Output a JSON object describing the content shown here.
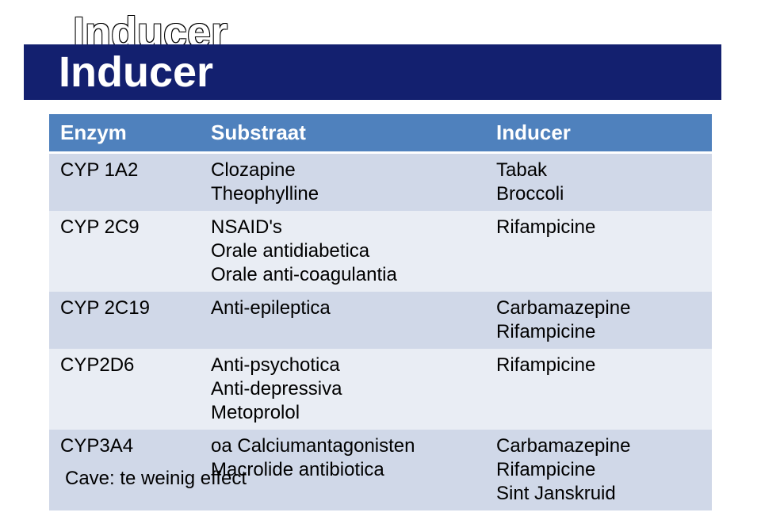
{
  "title": "Inducer",
  "table": {
    "header_bg": "#4f81bd",
    "header_fg": "#ffffff",
    "band_a_bg": "#d0d8e8",
    "band_b_bg": "#e9edf4",
    "columns": [
      "Enzym",
      "Substraat",
      "Inducer"
    ],
    "rows": [
      {
        "enzym": "CYP 1A2",
        "substraat": "Clozapine\nTheophylline",
        "inducer": "Tabak\nBroccoli"
      },
      {
        "enzym": "CYP 2C9",
        "substraat": "NSAID's\nOrale antidiabetica\nOrale anti-coagulantia",
        "inducer": "Rifampicine"
      },
      {
        "enzym": "CYP 2C19",
        "substraat": "Anti-epileptica",
        "inducer": "Carbamazepine\nRifampicine"
      },
      {
        "enzym": "CYP2D6",
        "substraat": "Anti-psychotica\nAnti-depressiva\nMetoprolol",
        "inducer": "Rifampicine"
      },
      {
        "enzym": "CYP3A4",
        "substraat": "oa Calciumantagonisten\nMacrolide antibiotica",
        "inducer": "Carbamazepine\nRifampicine\nSint Janskruid"
      }
    ]
  },
  "footnote": "Cave: te weinig effect"
}
